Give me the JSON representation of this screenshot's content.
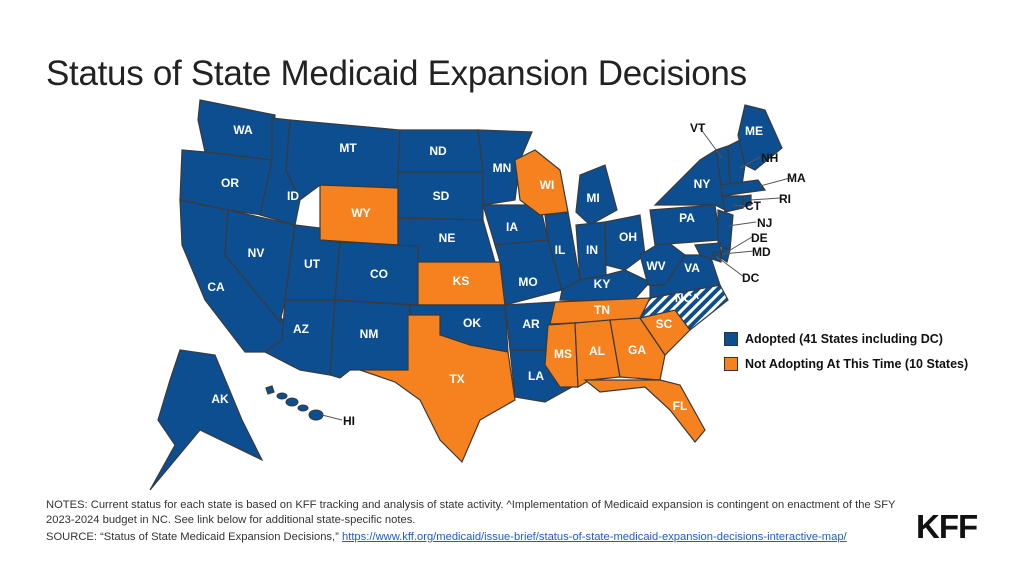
{
  "title": "Status of State Medicaid Expansion Decisions",
  "colors": {
    "adopted": "#0C4E90",
    "not_adopted": "#F5821F",
    "border": "#3a3a3a"
  },
  "legend": {
    "adopted": "Adopted (41 States including DC)",
    "not_adopted": "Not Adopting At This Time (10 States)"
  },
  "states": [
    {
      "code": "WA",
      "status": "adopted"
    },
    {
      "code": "OR",
      "status": "adopted"
    },
    {
      "code": "CA",
      "status": "adopted"
    },
    {
      "code": "ID",
      "status": "adopted"
    },
    {
      "code": "NV",
      "status": "adopted"
    },
    {
      "code": "MT",
      "status": "adopted"
    },
    {
      "code": "WY",
      "status": "not_adopted"
    },
    {
      "code": "UT",
      "status": "adopted"
    },
    {
      "code": "AZ",
      "status": "adopted"
    },
    {
      "code": "CO",
      "status": "adopted"
    },
    {
      "code": "NM",
      "status": "adopted"
    },
    {
      "code": "ND",
      "status": "adopted"
    },
    {
      "code": "SD",
      "status": "adopted"
    },
    {
      "code": "NE",
      "status": "adopted"
    },
    {
      "code": "KS",
      "status": "not_adopted"
    },
    {
      "code": "OK",
      "status": "adopted"
    },
    {
      "code": "TX",
      "status": "not_adopted"
    },
    {
      "code": "MN",
      "status": "adopted"
    },
    {
      "code": "IA",
      "status": "adopted"
    },
    {
      "code": "MO",
      "status": "adopted"
    },
    {
      "code": "AR",
      "status": "adopted"
    },
    {
      "code": "LA",
      "status": "adopted"
    },
    {
      "code": "WI",
      "status": "not_adopted"
    },
    {
      "code": "IL",
      "status": "adopted"
    },
    {
      "code": "MI",
      "status": "adopted"
    },
    {
      "code": "IN",
      "status": "adopted"
    },
    {
      "code": "OH",
      "status": "adopted"
    },
    {
      "code": "KY",
      "status": "adopted"
    },
    {
      "code": "TN",
      "status": "not_adopted"
    },
    {
      "code": "MS",
      "status": "not_adopted"
    },
    {
      "code": "AL",
      "status": "not_adopted"
    },
    {
      "code": "GA",
      "status": "not_adopted"
    },
    {
      "code": "FL",
      "status": "not_adopted"
    },
    {
      "code": "SC",
      "status": "not_adopted"
    },
    {
      "code": "NC^",
      "status": "adopted_pending"
    },
    {
      "code": "VA",
      "status": "adopted"
    },
    {
      "code": "WV",
      "status": "adopted"
    },
    {
      "code": "PA",
      "status": "adopted"
    },
    {
      "code": "NY",
      "status": "adopted"
    },
    {
      "code": "NJ",
      "status": "adopted"
    },
    {
      "code": "DE",
      "status": "adopted"
    },
    {
      "code": "MD",
      "status": "adopted"
    },
    {
      "code": "DC",
      "status": "adopted"
    },
    {
      "code": "VT",
      "status": "adopted"
    },
    {
      "code": "NH",
      "status": "adopted"
    },
    {
      "code": "ME",
      "status": "adopted"
    },
    {
      "code": "MA",
      "status": "adopted"
    },
    {
      "code": "CT",
      "status": "adopted"
    },
    {
      "code": "RI",
      "status": "adopted"
    },
    {
      "code": "AK",
      "status": "adopted"
    },
    {
      "code": "HI",
      "status": "adopted"
    }
  ],
  "notes": {
    "notes_text": "NOTES: Current status for each state is based on KFF tracking and analysis of state activity. ^Implementation of Medicaid expansion is contingent on enactment of the SFY 2023-2024 budget in NC. See link below for additional state-specific notes.",
    "source_prefix": "SOURCE: “Status of State Medicaid Expansion Decisions,” ",
    "source_link": "https://www.kff.org/medicaid/issue-brief/status-of-state-medicaid-expansion-decisions-interactive-map/"
  },
  "logo": "KFF"
}
